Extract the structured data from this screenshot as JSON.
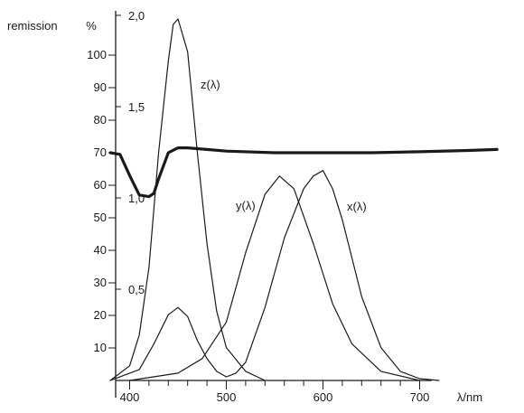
{
  "chart_data": {
    "type": "line",
    "xlabel": "λ/nm",
    "x_ticks": [
      "400",
      "500",
      "600",
      "700"
    ],
    "xlim": [
      380,
      780
    ],
    "y_axes": [
      {
        "label": "remission",
        "unit_label": "%",
        "ticks": [
          "10",
          "20",
          "30",
          "40",
          "50",
          "60",
          "70",
          "80",
          "90",
          "100"
        ],
        "ylim": [
          0,
          100
        ]
      },
      {
        "ticks": [
          "0,5",
          "1,0",
          "1,5",
          "2,0"
        ],
        "ylim": [
          0,
          2.0
        ]
      }
    ],
    "series": [
      {
        "name": "remission",
        "axis": 0,
        "x": [
          380,
          390,
          400,
          410,
          420,
          425,
          430,
          440,
          450,
          460,
          480,
          500,
          550,
          600,
          650,
          700,
          750,
          780
        ],
        "y": [
          70,
          69.5,
          63,
          57,
          56.5,
          57.5,
          62,
          70,
          71.5,
          71.5,
          71,
          70.5,
          70,
          70,
          70,
          70.3,
          70.7,
          71
        ]
      },
      {
        "name": "z(λ)",
        "axis": 1,
        "x": [
          380,
          400,
          410,
          420,
          430,
          440,
          445,
          450,
          460,
          470,
          480,
          490,
          500,
          520,
          540
        ],
        "y": [
          0.0,
          0.08,
          0.25,
          0.62,
          1.25,
          1.75,
          1.95,
          1.98,
          1.8,
          1.25,
          0.75,
          0.38,
          0.18,
          0.05,
          0.0
        ]
      },
      {
        "name": "y(λ)",
        "axis": 1,
        "x": [
          400,
          450,
          475,
          500,
          520,
          540,
          555,
          570,
          590,
          610,
          630,
          660,
          700
        ],
        "y": [
          0.0,
          0.04,
          0.12,
          0.32,
          0.7,
          1.02,
          1.12,
          1.05,
          0.75,
          0.42,
          0.2,
          0.05,
          0.0
        ]
      },
      {
        "name": "x(λ)",
        "axis": 1,
        "x": [
          380,
          410,
          425,
          440,
          450,
          460,
          470,
          480,
          490,
          500,
          510,
          520,
          540,
          560,
          580,
          590,
          600,
          610,
          620,
          640,
          660,
          680,
          700,
          720
        ],
        "y": [
          0.0,
          0.06,
          0.2,
          0.36,
          0.4,
          0.35,
          0.22,
          0.12,
          0.05,
          0.02,
          0.04,
          0.1,
          0.4,
          0.78,
          1.05,
          1.12,
          1.15,
          1.05,
          0.88,
          0.46,
          0.18,
          0.05,
          0.01,
          0.0
        ]
      }
    ],
    "colors": {
      "ink": "#1a1a1a",
      "background": "#ffffff"
    }
  }
}
